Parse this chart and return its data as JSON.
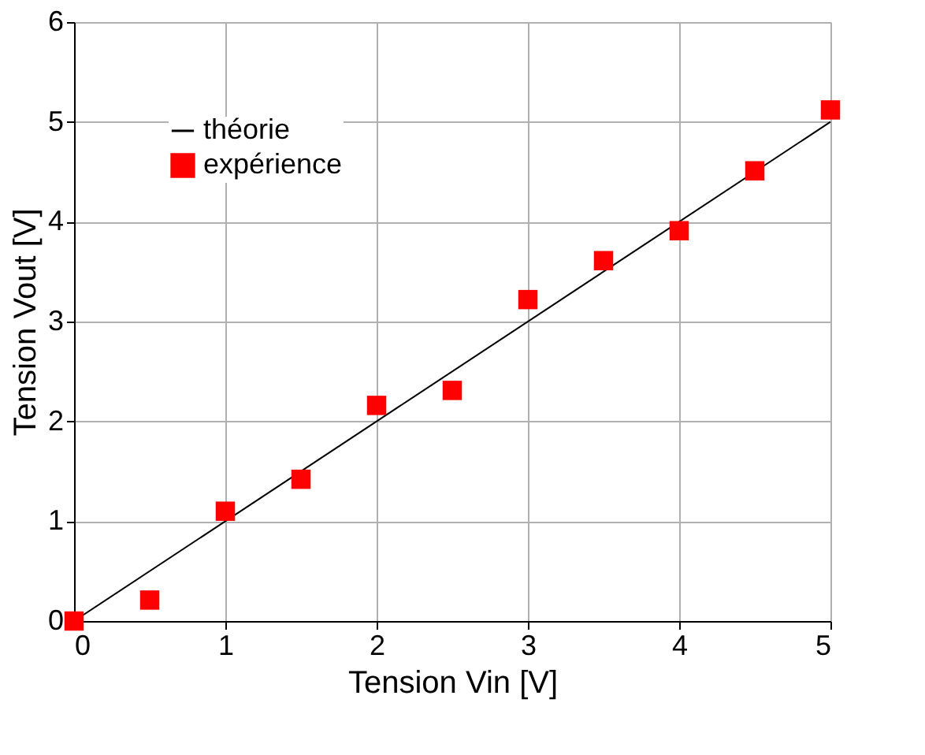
{
  "chart_data": {
    "type": "scatter",
    "xlabel": "Tension  Vin  [V]",
    "ylabel": "Tension Vout  [V]",
    "xlim": [
      0,
      5
    ],
    "ylim": [
      0,
      6
    ],
    "xticks": [
      0,
      1,
      2,
      3,
      4,
      5
    ],
    "yticks": [
      0,
      1,
      2,
      3,
      4,
      5,
      6
    ],
    "grid": true,
    "legend": "top left",
    "series": [
      {
        "name": "théorie",
        "type": "line",
        "color": "#000000",
        "x": [
          0,
          5
        ],
        "values": [
          0,
          5
        ],
        "line_style": "solid",
        "marker": "none"
      },
      {
        "name": "expérience",
        "color": "#ff0000",
        "x": [
          0,
          0.5,
          1,
          1.5,
          2,
          2.5,
          3,
          3.5,
          4,
          4.5,
          5
        ],
        "values": [
          0,
          0.21,
          1.1,
          1.42,
          2.16,
          2.31,
          3.22,
          3.61,
          3.91,
          4.51,
          5.12
        ],
        "marker": "square"
      }
    ]
  }
}
